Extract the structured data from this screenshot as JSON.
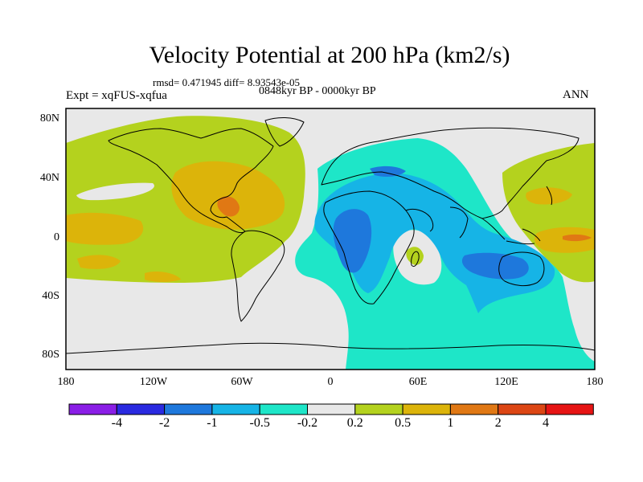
{
  "title": "Velocity Potential at 200 hPa (km2/s)",
  "stats": "rmsd= 0.471945 diff= 8.93543e-05",
  "period": "0848kyr BP - 0000kyr BP",
  "expt": "Expt = xqFUS-xqfua",
  "season": "ANN",
  "lat_labels": [
    "80N",
    "40N",
    "0",
    "40S",
    "80S"
  ],
  "lon_labels": [
    "180",
    "120W",
    "60W",
    "0",
    "60E",
    "120E",
    "180"
  ],
  "colorbar": {
    "labels": [
      "-4",
      "-2",
      "-1",
      "-0.5",
      "-0.2",
      "0.2",
      "0.5",
      "1",
      "2",
      "4"
    ],
    "colors": [
      "#8a1ee6",
      "#2a2ae0",
      "#1e78dc",
      "#16b4e6",
      "#1ee6c8",
      "#e8e8e8",
      "#b4d21e",
      "#dcb40a",
      "#e07814",
      "#dc4614",
      "#e61414"
    ]
  },
  "colors": {
    "neutral": "#e8e8e8",
    "teal": "#1ee6c8",
    "cyan": "#16b4e6",
    "blue": "#1e78dc",
    "green": "#b4d21e",
    "yellow": "#dcb40a",
    "orange": "#e07814",
    "deep_orange": "#dc4614"
  }
}
